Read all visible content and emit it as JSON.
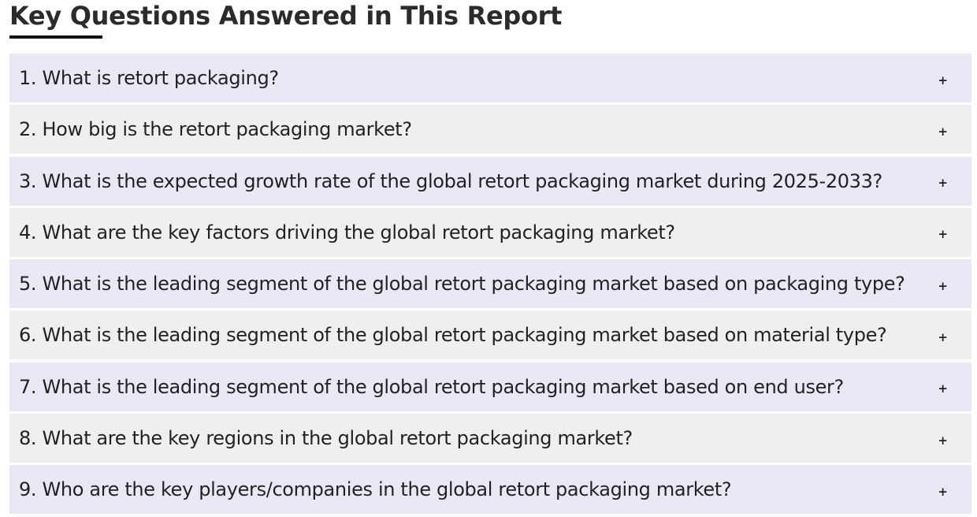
{
  "header": {
    "title": "Key Questions Answered in This Report"
  },
  "faq": {
    "expand_icon": "plus-icon",
    "expand_glyph": "+",
    "items": [
      {
        "question": "1. What is retort packaging?"
      },
      {
        "question": "2. How big is the retort packaging market?"
      },
      {
        "question": "3. What is the expected growth rate of the global retort packaging market during 2025-2033?"
      },
      {
        "question": "4. What are the key factors driving the global retort packaging market?"
      },
      {
        "question": "5. What is the leading segment of the global retort packaging market based on packaging type?"
      },
      {
        "question": "6. What is the leading segment of the global retort packaging market based on material type?"
      },
      {
        "question": "7. What is the leading segment of the global retort packaging market based on end user?"
      },
      {
        "question": "8. What are the key regions in the global retort packaging market?"
      },
      {
        "question": "9. Who are the key players/companies in the global retort packaging market?"
      }
    ]
  },
  "colors": {
    "odd_row_bg": "#e8e9f5",
    "even_row_bg": "#efefef",
    "title_underline": "#111111"
  }
}
